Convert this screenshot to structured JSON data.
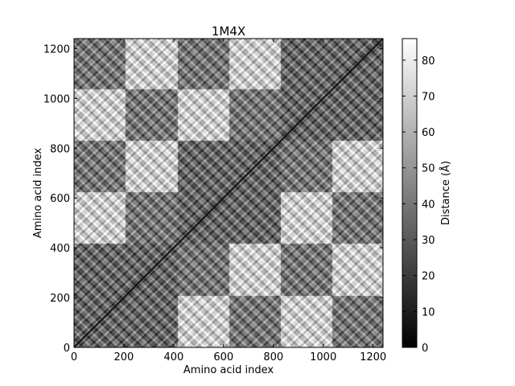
{
  "chart_data": {
    "type": "heatmap",
    "title": "1M4X",
    "xlabel": "Amino acid index",
    "ylabel": "Amino acid index",
    "xlim": [
      0,
      1240
    ],
    "ylim": [
      0,
      1240
    ],
    "x_ticks": [
      "0",
      "200",
      "400",
      "600",
      "800",
      "1000",
      "1200"
    ],
    "y_ticks": [
      "0",
      "200",
      "400",
      "600",
      "800",
      "1000",
      "1200"
    ],
    "colorbar": {
      "label": "Distance (Å)",
      "range": [
        0,
        86
      ],
      "ticks": [
        "0",
        "10",
        "20",
        "30",
        "40",
        "50",
        "60",
        "70",
        "80"
      ],
      "colormap": "gray"
    },
    "block_boundaries": [
      0,
      415,
      830,
      1240
    ],
    "block_pattern_description_levels": {
      "same_block": 35,
      "sub_block_near": 30,
      "far_block": 68,
      "diagonal": 0
    }
  }
}
